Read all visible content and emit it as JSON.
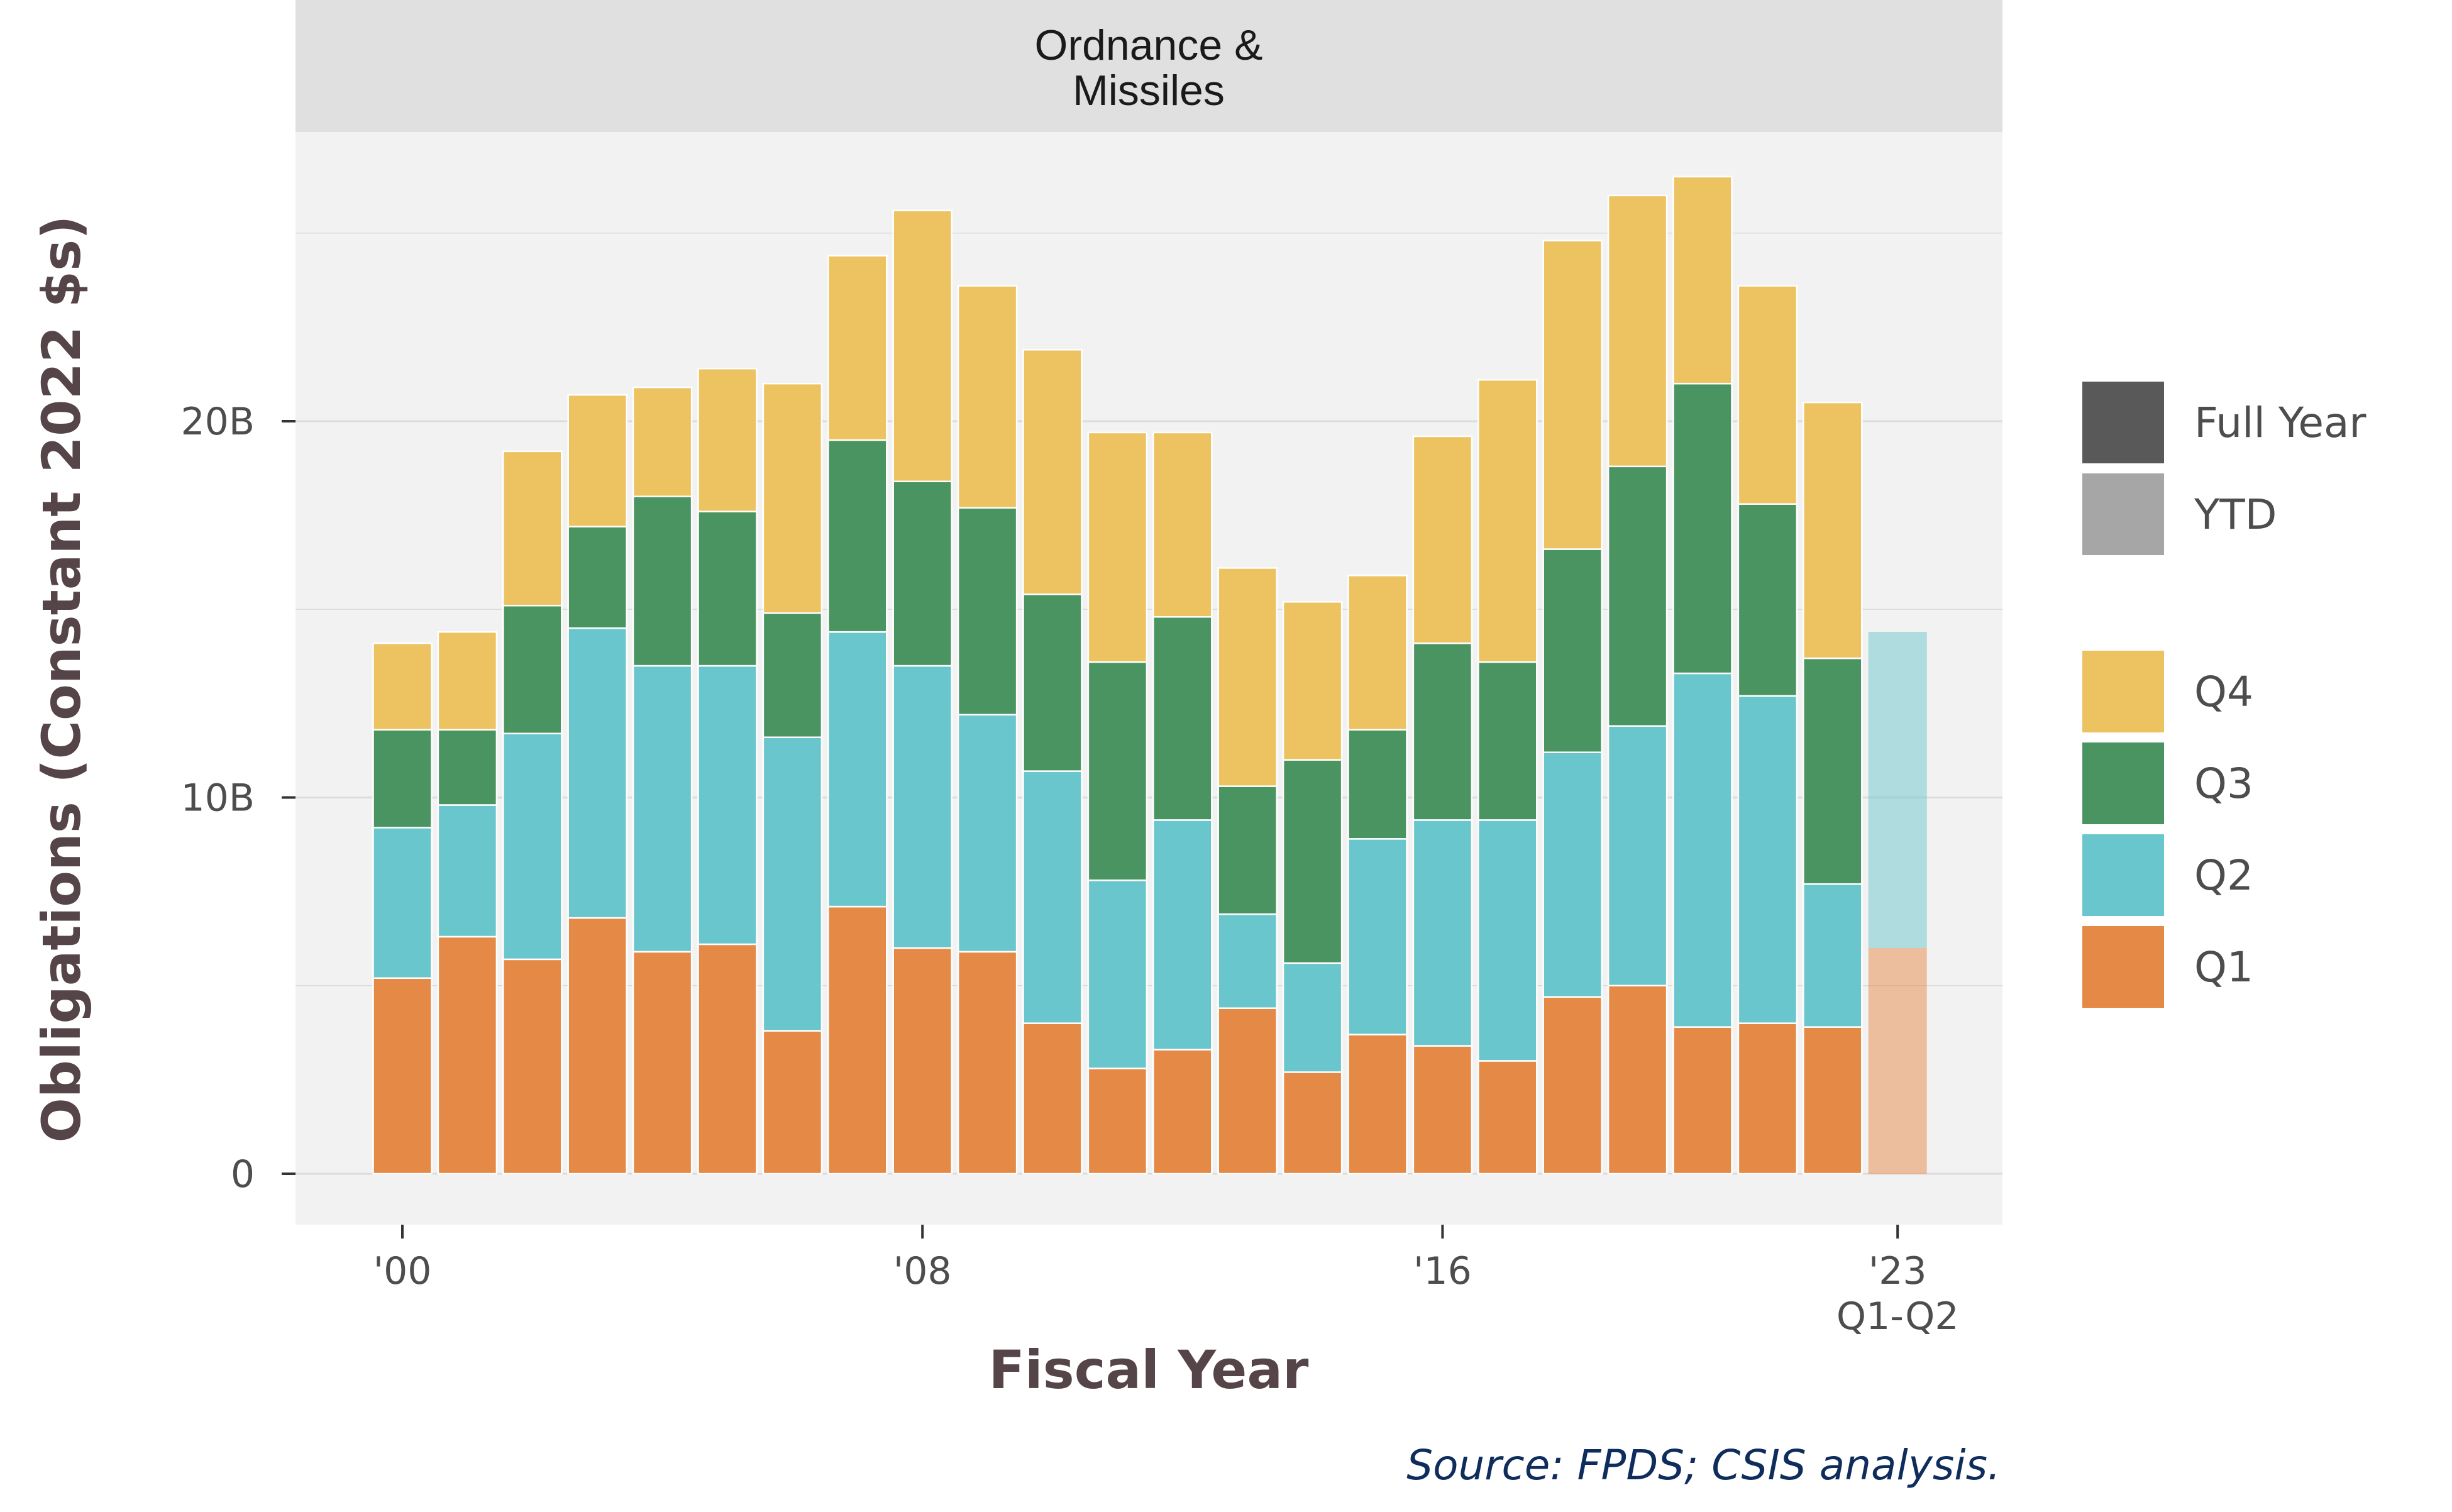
{
  "chart_data": {
    "type": "bar",
    "stacked": true,
    "facet_title": "Ordnance &\nMissiles",
    "xlabel": "Fiscal Year",
    "ylabel": "Obligations (Constant 2022 $s)",
    "source": "Source: FPDS; CSIS analysis.",
    "ylim": [
      0,
      28.5
    ],
    "yticks": [
      {
        "value": 0,
        "label": "0"
      },
      {
        "value": 10,
        "label": "10B"
      },
      {
        "value": 20,
        "label": "20B"
      }
    ],
    "xtick_labels": [
      {
        "year": 2000,
        "label": "'00"
      },
      {
        "year": 2008,
        "label": "'08"
      },
      {
        "year": 2016,
        "label": "'16"
      },
      {
        "year": 2023,
        "label": "'23\nQ1-Q2"
      }
    ],
    "units": "billions of constant 2022 dollars",
    "years": [
      2000,
      2001,
      2002,
      2003,
      2004,
      2005,
      2006,
      2007,
      2008,
      2009,
      2010,
      2011,
      2012,
      2013,
      2014,
      2015,
      2016,
      2017,
      2018,
      2019,
      2020,
      2021,
      2022,
      2023
    ],
    "period_type": [
      "Full Year",
      "Full Year",
      "Full Year",
      "Full Year",
      "Full Year",
      "Full Year",
      "Full Year",
      "Full Year",
      "Full Year",
      "Full Year",
      "Full Year",
      "Full Year",
      "Full Year",
      "Full Year",
      "Full Year",
      "Full Year",
      "Full Year",
      "Full Year",
      "Full Year",
      "Full Year",
      "Full Year",
      "Full Year",
      "Full Year",
      "YTD"
    ],
    "series": [
      {
        "name": "Q1",
        "color": "#e58947",
        "values": [
          5.2,
          6.3,
          5.7,
          6.8,
          5.9,
          6.1,
          3.8,
          7.1,
          6.0,
          5.9,
          4.0,
          2.8,
          3.3,
          4.4,
          2.7,
          3.7,
          3.4,
          3.0,
          4.7,
          5.0,
          3.9,
          4.0,
          3.9,
          6.0
        ]
      },
      {
        "name": "Q2",
        "color": "#69c6cc",
        "values": [
          4.0,
          3.5,
          6.0,
          7.7,
          7.6,
          7.4,
          7.8,
          7.3,
          7.5,
          6.3,
          6.7,
          5.0,
          6.1,
          2.5,
          2.9,
          5.2,
          6.0,
          6.4,
          6.5,
          6.9,
          9.4,
          8.7,
          3.8,
          8.4
        ]
      },
      {
        "name": "Q3",
        "color": "#4a9462",
        "values": [
          2.6,
          2.0,
          3.4,
          2.7,
          4.5,
          4.1,
          3.3,
          5.1,
          4.9,
          5.5,
          4.7,
          5.8,
          5.4,
          3.4,
          5.4,
          2.9,
          4.7,
          4.2,
          5.4,
          6.9,
          7.7,
          5.1,
          6.0,
          0
        ]
      },
      {
        "name": "Q4",
        "color": "#edc261",
        "values": [
          2.3,
          2.6,
          4.1,
          3.5,
          2.9,
          3.8,
          6.1,
          4.9,
          7.2,
          5.9,
          6.5,
          6.1,
          4.9,
          5.8,
          4.2,
          4.1,
          5.5,
          7.5,
          8.2,
          7.2,
          5.5,
          5.8,
          6.8,
          0
        ]
      }
    ],
    "legend": {
      "position": "right",
      "period_items": [
        {
          "label": "Full Year",
          "color": "#595959"
        },
        {
          "label": "YTD",
          "color": "#a6a6a6"
        }
      ],
      "quarter_items": [
        "Q4",
        "Q3",
        "Q2",
        "Q1"
      ]
    },
    "colors": {
      "panel_bg": "#f2f2f2",
      "strip_bg": "#e0e0e0",
      "grid": "#dcdcdc",
      "ytd_opacity": 0.5
    }
  }
}
